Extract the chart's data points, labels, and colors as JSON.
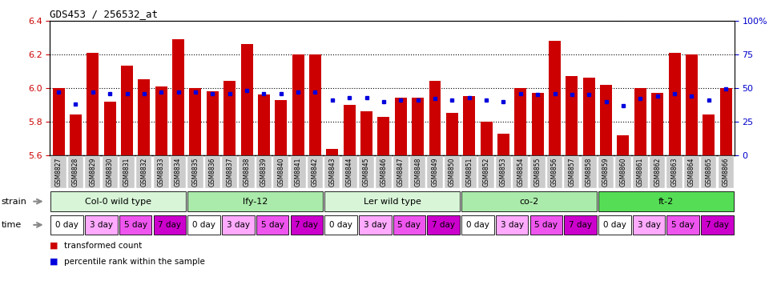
{
  "title": "GDS453 / 256532_at",
  "samples": [
    "GSM8827",
    "GSM8828",
    "GSM8829",
    "GSM8830",
    "GSM8831",
    "GSM8832",
    "GSM8833",
    "GSM8834",
    "GSM8835",
    "GSM8836",
    "GSM8837",
    "GSM8838",
    "GSM8839",
    "GSM8840",
    "GSM8841",
    "GSM8842",
    "GSM8843",
    "GSM8844",
    "GSM8845",
    "GSM8846",
    "GSM8847",
    "GSM8848",
    "GSM8849",
    "GSM8850",
    "GSM8851",
    "GSM8852",
    "GSM8853",
    "GSM8854",
    "GSM8855",
    "GSM8856",
    "GSM8857",
    "GSM8858",
    "GSM8859",
    "GSM8860",
    "GSM8861",
    "GSM8862",
    "GSM8863",
    "GSM8864",
    "GSM8865",
    "GSM8866"
  ],
  "bar_values": [
    6.0,
    5.84,
    6.21,
    5.92,
    6.13,
    6.05,
    6.01,
    6.29,
    6.0,
    5.98,
    6.04,
    6.26,
    5.96,
    5.93,
    6.2,
    6.2,
    5.64,
    5.9,
    5.86,
    5.83,
    5.94,
    5.94,
    6.04,
    5.85,
    5.95,
    5.8,
    5.73,
    6.0,
    5.97,
    6.28,
    6.07,
    6.06,
    6.02,
    5.72,
    6.0,
    5.97,
    6.21,
    6.2,
    5.84,
    6.0
  ],
  "percentile_values": [
    47,
    38,
    47,
    46,
    46,
    46,
    47,
    47,
    47,
    46,
    46,
    48,
    46,
    46,
    47,
    47,
    41,
    43,
    43,
    40,
    41,
    41,
    42,
    41,
    43,
    41,
    40,
    46,
    45,
    46,
    45,
    45,
    40,
    37,
    42,
    44,
    46,
    44,
    41,
    49
  ],
  "ymin": 5.6,
  "ymax": 6.4,
  "yticks": [
    5.6,
    5.8,
    6.0,
    6.2,
    6.4
  ],
  "right_yticks": [
    0,
    25,
    50,
    75,
    100
  ],
  "strains": [
    {
      "label": "Col-0 wild type",
      "start": 0,
      "end": 8,
      "color": "#d8f5d8"
    },
    {
      "label": "lfy-12",
      "start": 8,
      "end": 16,
      "color": "#aaeaaa"
    },
    {
      "label": "Ler wild type",
      "start": 16,
      "end": 24,
      "color": "#d8f5d8"
    },
    {
      "label": "co-2",
      "start": 24,
      "end": 32,
      "color": "#aaeaaa"
    },
    {
      "label": "ft-2",
      "start": 32,
      "end": 40,
      "color": "#55dd55"
    }
  ],
  "time_labels": [
    "0 day",
    "3 day",
    "5 day",
    "7 day"
  ],
  "time_colors": [
    "#ffffff",
    "#ffaaff",
    "#ee55ee",
    "#cc00cc"
  ],
  "bar_color": "#cc0000",
  "blue_color": "#0000dd",
  "axis_label_color": "#cc0000",
  "right_axis_color": "#0000cc",
  "xtick_bg": "#cccccc"
}
